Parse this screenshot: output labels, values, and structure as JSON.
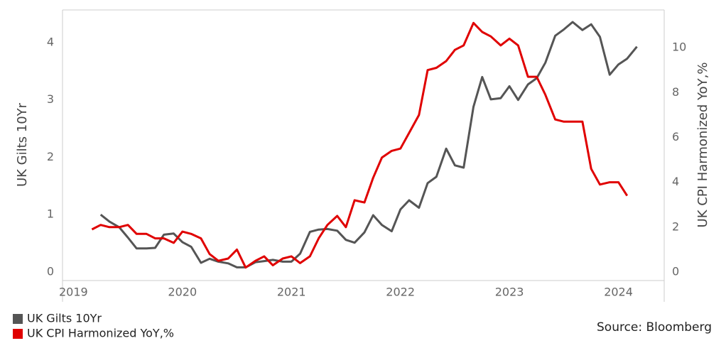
{
  "chart_data": {
    "type": "line",
    "ylabel": "UK Gilts 10Yr",
    "y2label": "UK CPI Harmonized YoY,%",
    "source": "Source: Bloomberg",
    "xlim": [
      2018.9,
      2024.42
    ],
    "xticks": [
      2019,
      2020,
      2021,
      2022,
      2023,
      2024
    ],
    "ylim": [
      -0.15,
      4.57
    ],
    "yticks": [
      0,
      1,
      2,
      3,
      4
    ],
    "y2lim": [
      -0.38,
      11.68
    ],
    "y2ticks": [
      0,
      2,
      4,
      6,
      8,
      10
    ],
    "legend": "bottom-left",
    "series": [
      {
        "name": "UK Gilts 10Yr",
        "color": "#555555",
        "axis": "y",
        "x": [
          2019.25,
          2019.33,
          2019.42,
          2019.5,
          2019.58,
          2019.67,
          2019.75,
          2019.83,
          2019.92,
          2020,
          2020.08,
          2020.17,
          2020.25,
          2020.33,
          2020.42,
          2020.5,
          2020.58,
          2020.67,
          2020.75,
          2020.83,
          2020.92,
          2021,
          2021.08,
          2021.17,
          2021.25,
          2021.33,
          2021.42,
          2021.5,
          2021.58,
          2021.67,
          2021.75,
          2021.83,
          2021.92,
          2022,
          2022.08,
          2022.17,
          2022.25,
          2022.33,
          2022.42,
          2022.5,
          2022.58,
          2022.67,
          2022.75,
          2022.83,
          2022.92,
          2023,
          2023.08,
          2023.17,
          2023.25,
          2023.33,
          2023.42,
          2023.5,
          2023.58,
          2023.67,
          2023.75,
          2023.83,
          2023.92,
          2024,
          2024.08,
          2024.17
        ],
        "values": [
          1.0,
          0.88,
          0.78,
          0.6,
          0.41,
          0.41,
          0.42,
          0.65,
          0.67,
          0.52,
          0.44,
          0.16,
          0.23,
          0.18,
          0.15,
          0.08,
          0.08,
          0.17,
          0.19,
          0.21,
          0.18,
          0.18,
          0.32,
          0.7,
          0.74,
          0.75,
          0.72,
          0.56,
          0.51,
          0.69,
          0.99,
          0.82,
          0.71,
          1.09,
          1.25,
          1.12,
          1.55,
          1.66,
          2.15,
          1.86,
          1.82,
          2.88,
          3.4,
          3.01,
          3.03,
          3.24,
          3.0,
          3.27,
          3.38,
          3.65,
          4.12,
          4.23,
          4.36,
          4.22,
          4.32,
          4.1,
          3.44,
          3.62,
          3.72,
          3.93
        ]
      },
      {
        "name": "UK CPI Harmonized YoY,%",
        "color": "#e00000",
        "axis": "y2",
        "x": [
          2019.17,
          2019.25,
          2019.33,
          2019.42,
          2019.5,
          2019.58,
          2019.67,
          2019.75,
          2019.83,
          2019.92,
          2020,
          2020.08,
          2020.17,
          2020.25,
          2020.33,
          2020.42,
          2020.5,
          2020.58,
          2020.67,
          2020.75,
          2020.83,
          2020.92,
          2021,
          2021.08,
          2021.17,
          2021.25,
          2021.33,
          2021.42,
          2021.5,
          2021.58,
          2021.67,
          2021.75,
          2021.83,
          2021.92,
          2022,
          2022.08,
          2022.17,
          2022.25,
          2022.33,
          2022.42,
          2022.5,
          2022.58,
          2022.67,
          2022.75,
          2022.83,
          2022.92,
          2023,
          2023.08,
          2023.17,
          2023.25,
          2023.33,
          2023.42,
          2023.5,
          2023.58,
          2023.67,
          2023.75,
          2023.83,
          2023.92,
          2024,
          2024.08
        ],
        "values": [
          1.9,
          2.1,
          2.0,
          2.0,
          2.1,
          1.7,
          1.7,
          1.5,
          1.5,
          1.3,
          1.8,
          1.7,
          1.5,
          0.8,
          0.5,
          0.6,
          1.0,
          0.2,
          0.5,
          0.7,
          0.3,
          0.6,
          0.7,
          0.4,
          0.7,
          1.5,
          2.1,
          2.5,
          2.0,
          3.2,
          3.1,
          4.2,
          5.1,
          5.4,
          5.5,
          6.2,
          7.0,
          9.0,
          9.1,
          9.4,
          9.9,
          10.1,
          11.1,
          10.7,
          10.5,
          10.1,
          10.4,
          10.1,
          8.7,
          8.7,
          7.9,
          6.8,
          6.7,
          6.7,
          6.7,
          4.6,
          3.9,
          4.0,
          4.0,
          3.4
        ]
      }
    ]
  }
}
